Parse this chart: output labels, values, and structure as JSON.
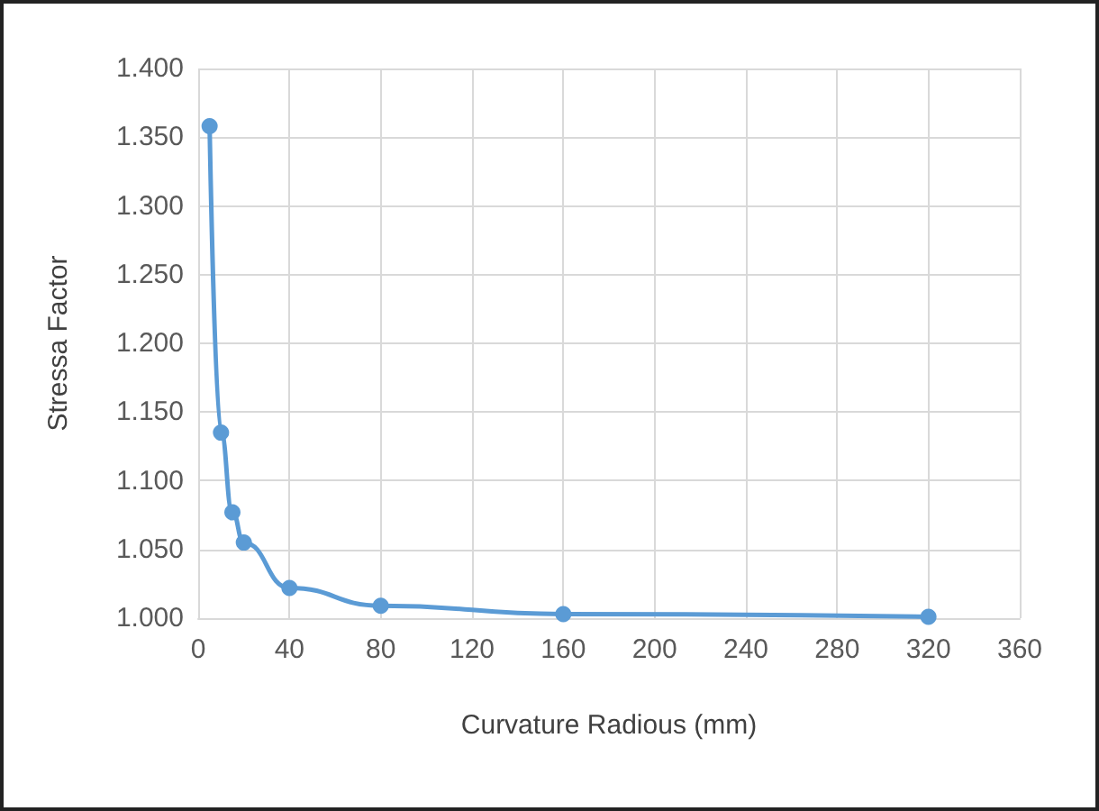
{
  "chart_data": {
    "type": "line",
    "xlabel": "Curvature Radious (mm)",
    "ylabel": "Stressa Factor",
    "x": [
      5,
      10,
      15,
      20,
      40,
      80,
      160,
      320
    ],
    "series": [
      {
        "color": "#5b9bd5",
        "values": [
          1.358,
          1.135,
          1.077,
          1.055,
          1.022,
          1.009,
          1.003,
          1.001
        ]
      }
    ],
    "xlim": [
      0,
      360
    ],
    "xticks": [
      0,
      40,
      80,
      120,
      160,
      200,
      240,
      280,
      320,
      360
    ],
    "ylim": [
      1.0,
      1.4
    ],
    "yticks": [
      {
        "value": 1.0,
        "label": "1.000"
      },
      {
        "value": 1.05,
        "label": "1.050"
      },
      {
        "value": 1.1,
        "label": "1.100"
      },
      {
        "value": 1.15,
        "label": "1.150"
      },
      {
        "value": 1.2,
        "label": "1.200"
      },
      {
        "value": 1.25,
        "label": "1.250"
      },
      {
        "value": 1.3,
        "label": "1.300"
      },
      {
        "value": 1.35,
        "label": "1.350"
      },
      {
        "value": 1.4,
        "label": "1.400"
      }
    ],
    "grid": true,
    "marker": "circle",
    "line_style": "solid"
  }
}
